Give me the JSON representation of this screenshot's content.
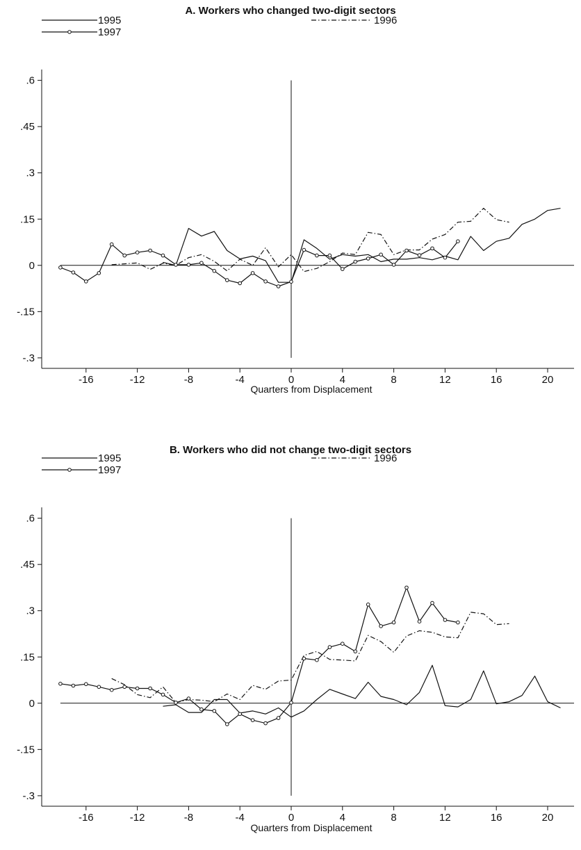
{
  "chart_data": [
    {
      "type": "line",
      "title": "A. Workers who changed two-digit sectors",
      "xlabel": "Quarters from Displacement",
      "ylabel": "",
      "xlim": [
        -18.5,
        21.5
      ],
      "ylim": [
        -0.33,
        0.64
      ],
      "xticks": [
        -16,
        -12,
        -8,
        -4,
        0,
        4,
        8,
        12,
        16,
        20
      ],
      "xtick_labels": [
        "-16",
        "-12",
        "-8",
        "-4",
        "0",
        "4",
        "8",
        "12",
        "16",
        "20"
      ],
      "yticks": [
        0.6,
        0.45,
        0.3,
        0.15,
        0,
        -0.15,
        -0.3
      ],
      "ytick_labels": [
        ".6",
        ".45",
        ".3",
        ".15",
        "0",
        "-.15",
        "-.3"
      ],
      "reference_lines": {
        "horizontal_y": 0,
        "vertical_x": 0,
        "vertical_range": [
          -0.3,
          0.6
        ]
      },
      "legend": {
        "position": "top",
        "entries": [
          {
            "label": "1995",
            "style": "solid"
          },
          {
            "label": "1996",
            "style": "dash-dot"
          },
          {
            "label": "1997",
            "style": "solid-circle"
          }
        ]
      },
      "series": [
        {
          "name": "1995",
          "style": "solid",
          "x": [
            -10,
            -9,
            -8,
            -7,
            -6,
            -5,
            -4,
            -3,
            -2,
            -1,
            0,
            1,
            2,
            3,
            4,
            5,
            6,
            7,
            8,
            9,
            10,
            11,
            12,
            13,
            14,
            15,
            16,
            17,
            18,
            19,
            20,
            21
          ],
          "y": [
            0.01,
            0.0,
            0.12,
            0.095,
            0.11,
            0.048,
            0.021,
            0.03,
            0.015,
            -0.055,
            -0.055,
            0.083,
            0.055,
            0.02,
            0.035,
            0.03,
            0.035,
            0.012,
            0.02,
            0.02,
            0.025,
            0.018,
            0.03,
            0.018,
            0.094,
            0.048,
            0.078,
            0.088,
            0.133,
            0.15,
            0.178,
            0.185
          ]
        },
        {
          "name": "1996",
          "style": "dash-dot",
          "x": [
            -14,
            -13,
            -12,
            -11,
            -10,
            -9,
            -8,
            -7,
            -6,
            -5,
            -4,
            -3,
            -2,
            -1,
            0,
            1,
            2,
            3,
            4,
            5,
            6,
            7,
            8,
            9,
            10,
            11,
            12,
            13,
            14,
            15,
            16,
            17
          ],
          "y": [
            0.002,
            0.005,
            0.008,
            -0.013,
            0.007,
            0.0,
            0.025,
            0.035,
            0.013,
            -0.018,
            0.02,
            0.0,
            0.057,
            -0.005,
            0.035,
            -0.02,
            -0.01,
            0.012,
            0.04,
            0.035,
            0.107,
            0.1,
            0.035,
            0.05,
            0.05,
            0.085,
            0.1,
            0.14,
            0.143,
            0.185,
            0.148,
            0.14
          ]
        },
        {
          "name": "1997",
          "style": "solid-circle",
          "x": [
            -18,
            -17,
            -16,
            -15,
            -14,
            -13,
            -12,
            -11,
            -10,
            -9,
            -8,
            -7,
            -6,
            -5,
            -4,
            -3,
            -2,
            -1,
            0,
            1,
            2,
            3,
            4,
            5,
            6,
            7,
            8,
            9,
            10,
            11,
            12,
            13
          ],
          "y": [
            -0.007,
            -0.023,
            -0.052,
            -0.025,
            0.068,
            0.032,
            0.042,
            0.048,
            0.032,
            0.002,
            0.002,
            0.008,
            -0.018,
            -0.048,
            -0.058,
            -0.025,
            -0.052,
            -0.068,
            -0.053,
            0.05,
            0.032,
            0.032,
            -0.012,
            0.012,
            0.022,
            0.035,
            0.002,
            0.048,
            0.033,
            0.055,
            0.025,
            0.078
          ]
        }
      ]
    },
    {
      "type": "line",
      "title": "B. Workers who did not change two-digit sectors",
      "xlabel": "Quarters from Displacement",
      "ylabel": "",
      "xlim": [
        -18.5,
        21.5
      ],
      "ylim": [
        -0.33,
        0.64
      ],
      "xticks": [
        -16,
        -12,
        -8,
        -4,
        0,
        4,
        8,
        12,
        16,
        20
      ],
      "xtick_labels": [
        "-16",
        "-12",
        "-8",
        "-4",
        "0",
        "4",
        "8",
        "12",
        "16",
        "20"
      ],
      "yticks": [
        0.6,
        0.45,
        0.3,
        0.15,
        0,
        -0.15,
        -0.3
      ],
      "ytick_labels": [
        ".6",
        ".45",
        ".3",
        ".15",
        "0",
        "-.15",
        "-.3"
      ],
      "reference_lines": {
        "horizontal_y": 0,
        "vertical_x": 0,
        "vertical_range": [
          -0.3,
          0.6
        ]
      },
      "legend": {
        "position": "top",
        "entries": [
          {
            "label": "1995",
            "style": "solid"
          },
          {
            "label": "1996",
            "style": "dash-dot"
          },
          {
            "label": "1997",
            "style": "solid-circle"
          }
        ]
      },
      "series": [
        {
          "name": "1995",
          "style": "solid",
          "x": [
            -10,
            -9,
            -8,
            -7,
            -6,
            -5,
            -4,
            -3,
            -2,
            -1,
            0,
            1,
            2,
            3,
            4,
            5,
            6,
            7,
            8,
            9,
            10,
            11,
            12,
            13,
            14,
            15,
            16,
            17,
            18,
            19,
            20,
            21
          ],
          "y": [
            -0.01,
            -0.005,
            -0.03,
            -0.03,
            0.012,
            0.012,
            -0.032,
            -0.025,
            -0.035,
            -0.015,
            -0.045,
            -0.025,
            0.012,
            0.045,
            0.03,
            0.015,
            0.068,
            0.022,
            0.012,
            -0.005,
            0.035,
            0.123,
            -0.008,
            -0.012,
            0.012,
            0.105,
            -0.002,
            0.005,
            0.025,
            0.088,
            0.005,
            -0.015
          ]
        },
        {
          "name": "1996",
          "style": "dash-dot",
          "x": [
            -14,
            -13,
            -12,
            -11,
            -10,
            -9,
            -8,
            -7,
            -6,
            -5,
            -4,
            -3,
            -2,
            -1,
            0,
            1,
            2,
            3,
            4,
            5,
            6,
            7,
            8,
            9,
            10,
            11,
            12,
            13,
            14,
            15,
            16,
            17
          ],
          "y": [
            0.08,
            0.06,
            0.028,
            0.018,
            0.053,
            0.002,
            0.012,
            0.01,
            0.005,
            0.03,
            0.012,
            0.058,
            0.045,
            0.072,
            0.075,
            0.155,
            0.168,
            0.142,
            0.14,
            0.137,
            0.22,
            0.2,
            0.165,
            0.218,
            0.235,
            0.23,
            0.215,
            0.212,
            0.295,
            0.29,
            0.255,
            0.258
          ]
        },
        {
          "name": "1997",
          "style": "solid-circle",
          "x": [
            -18,
            -17,
            -16,
            -15,
            -14,
            -13,
            -12,
            -11,
            -10,
            -9,
            -8,
            -7,
            -6,
            -5,
            -4,
            -3,
            -2,
            -1,
            0,
            1,
            2,
            3,
            4,
            5,
            6,
            7,
            8,
            9,
            10,
            11,
            12,
            13
          ],
          "y": [
            0.063,
            0.057,
            0.062,
            0.053,
            0.043,
            0.053,
            0.048,
            0.048,
            0.028,
            0.002,
            0.015,
            -0.02,
            -0.025,
            -0.068,
            -0.035,
            -0.055,
            -0.065,
            -0.048,
            0.002,
            0.145,
            0.14,
            0.182,
            0.193,
            0.168,
            0.32,
            0.25,
            0.262,
            0.375,
            0.265,
            0.325,
            0.27,
            0.262
          ]
        }
      ]
    }
  ]
}
